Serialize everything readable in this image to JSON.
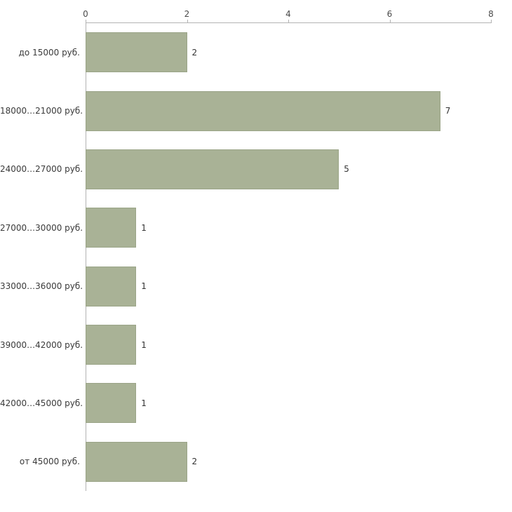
{
  "chart_data": {
    "type": "bar",
    "orientation": "horizontal",
    "title": "",
    "xlabel": "",
    "ylabel": "",
    "categories": [
      "до 15000 руб.",
      "18000…21000 руб.",
      "24000…27000 руб.",
      "27000…30000 руб.",
      "33000…36000 руб.",
      "39000…42000 руб.",
      "42000…45000 руб.",
      "от 45000 руб."
    ],
    "values": [
      2,
      7,
      5,
      1,
      1,
      1,
      1,
      2
    ],
    "value_labels": [
      "2",
      "7",
      "5",
      "1",
      "1",
      "1",
      "1",
      "2"
    ],
    "xticks": [
      "0",
      "2",
      "4",
      "6",
      "8"
    ],
    "xlim": [
      0,
      8
    ],
    "grid": false,
    "legend": false,
    "colors": {
      "bar_fill": "#a9b296",
      "bar_border": "#9aa487",
      "axis": "#b3b3b3",
      "category_text": "#3a3a3a",
      "value_text": "#333333",
      "tick_text": "#4a4a4a"
    }
  }
}
